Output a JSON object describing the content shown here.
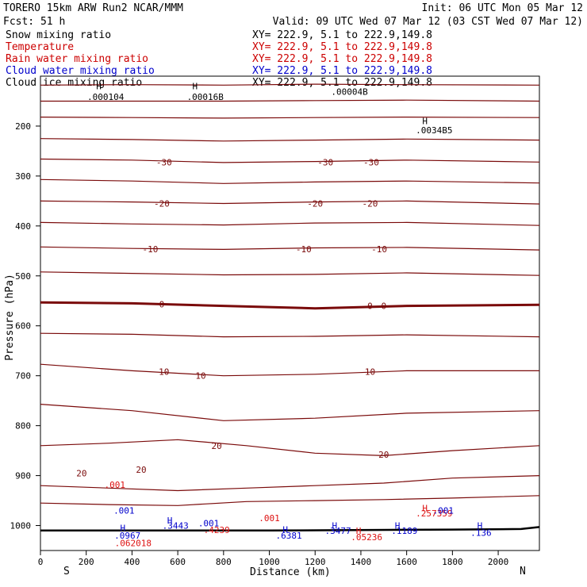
{
  "header": {
    "model": "TORERO  15km ARW   Run2    NCAR/MMM",
    "init": "Init: 06 UTC Mon 05 Mar 12",
    "fcst": "Fcst:   51 h",
    "valid": "Valid: 09 UTC Wed 07 Mar 12 (03 CST Wed 07 Mar 12)"
  },
  "legend": [
    {
      "name": "Snow mixing ratio",
      "xy": "XY= 222.9,  5.1 to 222.9,149.8",
      "color": "#000000"
    },
    {
      "name": "Temperature",
      "xy": "XY= 222.9,  5.1 to 222.9,149.8",
      "color": "#cc0000"
    },
    {
      "name": "Rain water mixing ratio",
      "xy": "XY= 222.9,  5.1 to 222.9,149.8",
      "color": "#cc0000"
    },
    {
      "name": "Cloud water mixing ratio",
      "xy": "XY= 222.9,  5.1 to 222.9,149.8",
      "color": "#0000cc"
    },
    {
      "name": "Cloud ice mixing ratio",
      "xy": "XY= 222.9,  5.1 to 222.9,149.8",
      "color": "#000000"
    }
  ],
  "colors": {
    "temperature": "#7a0a0a",
    "rain": "#dd1111",
    "cloud_water": "#0000cc",
    "ice": "#000000",
    "axis": "#000000"
  },
  "chart_data": {
    "type": "contour",
    "xlabel": "Distance (km)",
    "ylabel": "Pressure (hPa)",
    "xlim": [
      0,
      2180
    ],
    "ylim": [
      1050,
      100
    ],
    "xticks": [
      0,
      200,
      400,
      600,
      800,
      1000,
      1200,
      1400,
      1600,
      1800,
      2000
    ],
    "yticks": [
      200,
      300,
      400,
      500,
      600,
      700,
      800,
      900,
      1000
    ],
    "x_end_labels": {
      "left": "S",
      "right": "N"
    },
    "temperature_contours": [
      {
        "level": -50,
        "points": [
          [
            0,
            118
          ],
          [
            400,
            117
          ],
          [
            800,
            118
          ],
          [
            1200,
            116
          ],
          [
            1600,
            117
          ],
          [
            2180,
            118
          ]
        ]
      },
      {
        "level": -45,
        "points": [
          [
            0,
            150
          ],
          [
            400,
            150
          ],
          [
            800,
            150
          ],
          [
            1200,
            149
          ],
          [
            1600,
            148
          ],
          [
            2180,
            150
          ]
        ]
      },
      {
        "level": -40,
        "points": [
          [
            0,
            182
          ],
          [
            400,
            183
          ],
          [
            800,
            184
          ],
          [
            1200,
            183
          ],
          [
            1600,
            182
          ],
          [
            2180,
            183
          ]
        ]
      },
      {
        "level": -35,
        "points": [
          [
            0,
            225
          ],
          [
            400,
            227
          ],
          [
            800,
            230
          ],
          [
            1200,
            228
          ],
          [
            1600,
            226
          ],
          [
            2180,
            228
          ]
        ]
      },
      {
        "level": -30,
        "points": [
          [
            0,
            266
          ],
          [
            400,
            268
          ],
          [
            800,
            273
          ],
          [
            1200,
            271
          ],
          [
            1600,
            268
          ],
          [
            2180,
            272
          ]
        ]
      },
      {
        "level": -25,
        "points": [
          [
            0,
            307
          ],
          [
            400,
            310
          ],
          [
            800,
            315
          ],
          [
            1200,
            312
          ],
          [
            1600,
            310
          ],
          [
            2180,
            314
          ]
        ]
      },
      {
        "level": -20,
        "points": [
          [
            0,
            350
          ],
          [
            400,
            352
          ],
          [
            800,
            355
          ],
          [
            1200,
            352
          ],
          [
            1600,
            350
          ],
          [
            2180,
            356
          ]
        ]
      },
      {
        "level": -15,
        "points": [
          [
            0,
            393
          ],
          [
            400,
            396
          ],
          [
            800,
            398
          ],
          [
            1200,
            394
          ],
          [
            1600,
            393
          ],
          [
            2180,
            399
          ]
        ]
      },
      {
        "level": -10,
        "points": [
          [
            0,
            442
          ],
          [
            400,
            445
          ],
          [
            800,
            447
          ],
          [
            1200,
            444
          ],
          [
            1600,
            443
          ],
          [
            2180,
            448
          ]
        ]
      },
      {
        "level": -5,
        "points": [
          [
            0,
            492
          ],
          [
            400,
            495
          ],
          [
            800,
            498
          ],
          [
            1200,
            497
          ],
          [
            1600,
            494
          ],
          [
            2180,
            499
          ]
        ]
      },
      {
        "level": 0,
        "points": [
          [
            0,
            553
          ],
          [
            400,
            555
          ],
          [
            800,
            560
          ],
          [
            1200,
            565
          ],
          [
            1600,
            560
          ],
          [
            2180,
            558
          ]
        ]
      },
      {
        "level": 5,
        "points": [
          [
            0,
            615
          ],
          [
            400,
            617
          ],
          [
            800,
            622
          ],
          [
            1200,
            621
          ],
          [
            1600,
            618
          ],
          [
            2180,
            622
          ]
        ]
      },
      {
        "level": 10,
        "points": [
          [
            0,
            677
          ],
          [
            400,
            690
          ],
          [
            800,
            700
          ],
          [
            1200,
            697
          ],
          [
            1600,
            690
          ],
          [
            2180,
            690
          ]
        ]
      },
      {
        "level": 15,
        "points": [
          [
            0,
            757
          ],
          [
            400,
            770
          ],
          [
            800,
            790
          ],
          [
            1200,
            785
          ],
          [
            1600,
            775
          ],
          [
            2180,
            770
          ]
        ]
      },
      {
        "level": 20,
        "points": [
          [
            0,
            840
          ],
          [
            300,
            835
          ],
          [
            600,
            828
          ],
          [
            900,
            840
          ],
          [
            1200,
            855
          ],
          [
            1500,
            860
          ],
          [
            1800,
            850
          ],
          [
            2180,
            840
          ]
        ]
      },
      {
        "level": 25,
        "points": [
          [
            0,
            920
          ],
          [
            300,
            925
          ],
          [
            600,
            930
          ],
          [
            900,
            925
          ],
          [
            1200,
            920
          ],
          [
            1500,
            915
          ],
          [
            1800,
            905
          ],
          [
            2180,
            900
          ]
        ]
      },
      {
        "level": 30,
        "points": [
          [
            0,
            955
          ],
          [
            300,
            958
          ],
          [
            600,
            960
          ],
          [
            900,
            952
          ],
          [
            1200,
            950
          ],
          [
            1500,
            948
          ],
          [
            1800,
            945
          ],
          [
            2180,
            940
          ]
        ]
      }
    ],
    "labels": [
      {
        "text": "-30",
        "x": 540,
        "p": 272,
        "series": "temperature"
      },
      {
        "text": "-30",
        "x": 1245,
        "p": 272,
        "series": "temperature"
      },
      {
        "text": "-30",
        "x": 1445,
        "p": 272,
        "series": "temperature"
      },
      {
        "text": "-20",
        "x": 530,
        "p": 355,
        "series": "temperature"
      },
      {
        "text": "-20",
        "x": 1200,
        "p": 355,
        "series": "temperature"
      },
      {
        "text": "-20",
        "x": 1440,
        "p": 355,
        "series": "temperature"
      },
      {
        "text": "-10",
        "x": 480,
        "p": 446,
        "series": "temperature"
      },
      {
        "text": "-10",
        "x": 1150,
        "p": 446,
        "series": "temperature"
      },
      {
        "text": "-10",
        "x": 1480,
        "p": 446,
        "series": "temperature"
      },
      {
        "text": "0",
        "x": 530,
        "p": 557,
        "series": "temperature"
      },
      {
        "text": "0",
        "x": 1440,
        "p": 560,
        "series": "temperature"
      },
      {
        "text": "0",
        "x": 1500,
        "p": 560,
        "series": "temperature"
      },
      {
        "text": "10",
        "x": 540,
        "p": 692,
        "series": "temperature"
      },
      {
        "text": "10",
        "x": 700,
        "p": 700,
        "series": "temperature"
      },
      {
        "text": "10",
        "x": 1440,
        "p": 692,
        "series": "temperature"
      },
      {
        "text": "20",
        "x": 770,
        "p": 840,
        "series": "temperature"
      },
      {
        "text": "20",
        "x": 1500,
        "p": 858,
        "series": "temperature"
      },
      {
        "text": "20",
        "x": 180,
        "p": 895,
        "series": "temperature"
      },
      {
        "text": "20",
        "x": 440,
        "p": 888,
        "series": "temperature"
      },
      {
        "text": "H",
        "x": 255,
        "p": 120,
        "series": "ice"
      },
      {
        "text": ".000104",
        "x": 285,
        "p": 141,
        "series": "ice"
      },
      {
        "text": "H",
        "x": 675,
        "p": 120,
        "series": "ice"
      },
      {
        "text": ".00016B",
        "x": 720,
        "p": 141,
        "series": "ice"
      },
      {
        "text": ".00004B",
        "x": 1350,
        "p": 131,
        "series": "ice"
      },
      {
        "text": "H",
        "x": 1680,
        "p": 190,
        "series": "ice"
      },
      {
        "text": ".0034B5",
        "x": 1720,
        "p": 208,
        "series": "ice"
      },
      {
        "text": ".001",
        "x": 325,
        "p": 918,
        "series": "rain"
      },
      {
        "text": ".001",
        "x": 365,
        "p": 970,
        "series": "cloud_water"
      },
      {
        "text": "H",
        "x": 360,
        "p": 1005,
        "series": "cloud_water"
      },
      {
        "text": ".0967",
        "x": 380,
        "p": 1020,
        "series": "cloud_water"
      },
      {
        "text": ".062018",
        "x": 405,
        "p": 1035,
        "series": "rain"
      },
      {
        "text": "H",
        "x": 565,
        "p": 990,
        "series": "cloud_water"
      },
      {
        "text": ".3443",
        "x": 590,
        "p": 1000,
        "series": "cloud_water"
      },
      {
        "text": ".001",
        "x": 735,
        "p": 995,
        "series": "cloud_water"
      },
      {
        "text": ".4239",
        "x": 770,
        "p": 1009,
        "series": "rain"
      },
      {
        "text": ".001",
        "x": 1000,
        "p": 985,
        "series": "rain"
      },
      {
        "text": "H",
        "x": 1070,
        "p": 1008,
        "series": "cloud_water"
      },
      {
        "text": ".6381",
        "x": 1085,
        "p": 1020,
        "series": "cloud_water"
      },
      {
        "text": "H",
        "x": 1285,
        "p": 1000,
        "series": "cloud_water"
      },
      {
        "text": ".3477",
        "x": 1300,
        "p": 1010,
        "series": "cloud_water"
      },
      {
        "text": "H",
        "x": 1390,
        "p": 1010,
        "series": "rain"
      },
      {
        "text": ".05236",
        "x": 1425,
        "p": 1023,
        "series": "rain"
      },
      {
        "text": "H",
        "x": 1560,
        "p": 1000,
        "series": "cloud_water"
      },
      {
        "text": ".1189",
        "x": 1590,
        "p": 1010,
        "series": "cloud_water"
      },
      {
        "text": "H",
        "x": 1680,
        "p": 965,
        "series": "rain"
      },
      {
        "text": ".257359",
        "x": 1720,
        "p": 975,
        "series": "rain"
      },
      {
        "text": ".001",
        "x": 1760,
        "p": 970,
        "series": "cloud_water"
      },
      {
        "text": "H",
        "x": 1920,
        "p": 1000,
        "series": "cloud_water"
      },
      {
        "text": ".136",
        "x": 1925,
        "p": 1014,
        "series": "cloud_water"
      }
    ],
    "ground_pressure": [
      [
        0,
        1010
      ],
      [
        1000,
        1010
      ],
      [
        1800,
        1008
      ],
      [
        2100,
        1007
      ],
      [
        2180,
        1003
      ]
    ]
  }
}
